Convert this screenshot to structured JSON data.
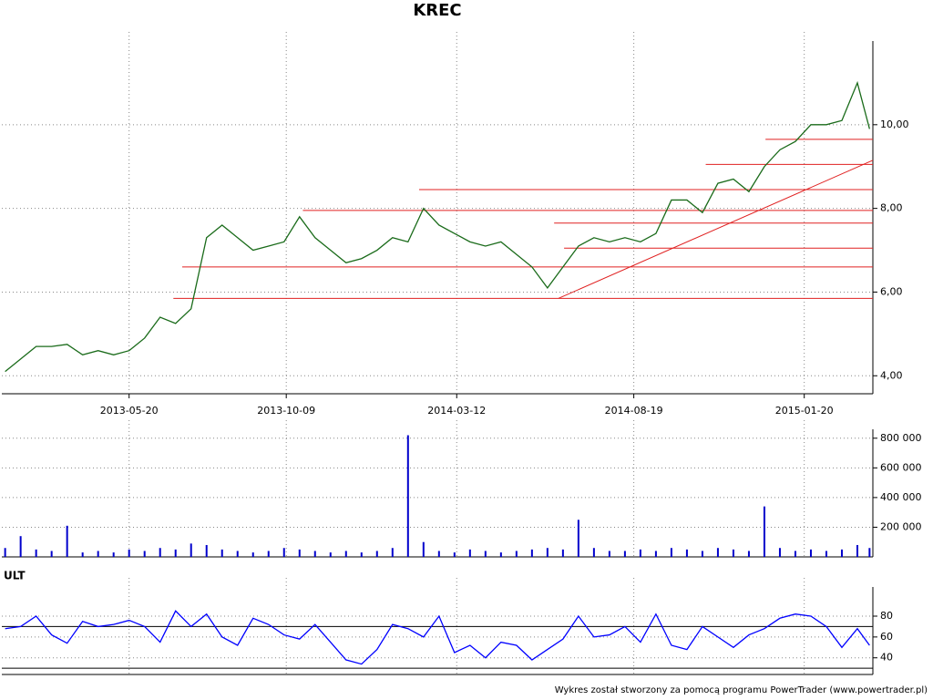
{
  "chart_data": [
    {
      "type": "line",
      "title": "KREC",
      "x": [
        "2013-01-28",
        "2013-02-11",
        "2013-02-25",
        "2013-03-11",
        "2013-03-25",
        "2013-04-08",
        "2013-04-22",
        "2013-05-06",
        "2013-05-20",
        "2013-06-03",
        "2013-06-17",
        "2013-07-01",
        "2013-07-15",
        "2013-07-29",
        "2013-08-12",
        "2013-08-26",
        "2013-09-09",
        "2013-09-23",
        "2013-10-07",
        "2013-10-21",
        "2013-11-04",
        "2013-11-18",
        "2013-12-02",
        "2013-12-16",
        "2013-12-30",
        "2014-01-13",
        "2014-01-27",
        "2014-02-10",
        "2014-02-24",
        "2014-03-10",
        "2014-03-24",
        "2014-04-07",
        "2014-04-21",
        "2014-05-05",
        "2014-05-19",
        "2014-06-02",
        "2014-06-16",
        "2014-06-30",
        "2014-07-14",
        "2014-07-28",
        "2014-08-11",
        "2014-08-25",
        "2014-09-08",
        "2014-09-22",
        "2014-10-06",
        "2014-10-20",
        "2014-11-03",
        "2014-11-17",
        "2014-12-01",
        "2014-12-15",
        "2014-12-29",
        "2015-01-12",
        "2015-01-26",
        "2015-02-09",
        "2015-02-23",
        "2015-03-09",
        "2015-03-20"
      ],
      "series": [
        {
          "color": "#1a6b1a",
          "values": [
            4.1,
            4.4,
            4.7,
            4.7,
            4.75,
            4.5,
            4.6,
            4.5,
            4.6,
            4.9,
            5.4,
            5.25,
            5.6,
            7.3,
            7.6,
            7.3,
            7.0,
            7.1,
            7.2,
            7.8,
            7.3,
            7.0,
            6.7,
            6.8,
            7.0,
            7.3,
            7.2,
            8.0,
            7.6,
            7.4,
            7.2,
            7.1,
            7.2,
            6.9,
            6.6,
            6.1,
            6.6,
            7.1,
            7.3,
            7.2,
            7.3,
            7.2,
            7.4,
            8.2,
            8.2,
            7.9,
            8.6,
            8.7,
            8.4,
            9.0,
            9.4,
            9.6,
            10.0,
            10.0,
            10.1,
            11.0,
            9.9
          ]
        }
      ],
      "levels": [
        {
          "value": 5.85,
          "start": "2013-06-29"
        },
        {
          "value": 6.6,
          "start": "2013-07-07"
        },
        {
          "value": 7.95,
          "start": "2013-10-24"
        },
        {
          "value": 8.45,
          "start": "2014-02-06"
        },
        {
          "value": 7.65,
          "start": "2014-06-08"
        },
        {
          "value": 7.05,
          "start": "2014-06-17"
        },
        {
          "value": 9.05,
          "start": "2014-10-23"
        },
        {
          "value": 9.65,
          "start": "2014-12-16"
        }
      ],
      "level_color": "#e02020",
      "trendline": {
        "x": [
          "2014-06-12",
          "2015-03-23"
        ],
        "y": [
          5.85,
          9.15
        ]
      },
      "xlim": [
        "2013-01-25",
        "2015-03-23"
      ],
      "xticks": [
        "2013-05-20",
        "2013-10-09",
        "2014-03-12",
        "2014-08-19",
        "2015-01-20"
      ],
      "ylim": [
        3.57,
        12.0
      ],
      "yticks": [
        {
          "value": 4,
          "label": "4,00"
        },
        {
          "value": 6,
          "label": "6,00"
        },
        {
          "value": 8,
          "label": "8,00"
        },
        {
          "value": 10,
          "label": "10,00"
        }
      ],
      "grid": true
    },
    {
      "type": "bar",
      "x": [
        "2013-01-28",
        "2013-02-11",
        "2013-02-25",
        "2013-03-11",
        "2013-03-25",
        "2013-04-08",
        "2013-04-22",
        "2013-05-06",
        "2013-05-20",
        "2013-06-03",
        "2013-06-17",
        "2013-07-01",
        "2013-07-15",
        "2013-07-29",
        "2013-08-12",
        "2013-08-26",
        "2013-09-09",
        "2013-09-23",
        "2013-10-07",
        "2013-10-21",
        "2013-11-04",
        "2013-11-18",
        "2013-12-02",
        "2013-12-16",
        "2013-12-30",
        "2014-01-13",
        "2014-01-27",
        "2014-02-10",
        "2014-02-24",
        "2014-03-10",
        "2014-03-24",
        "2014-04-07",
        "2014-04-21",
        "2014-05-05",
        "2014-05-19",
        "2014-06-02",
        "2014-06-16",
        "2014-06-30",
        "2014-07-14",
        "2014-07-28",
        "2014-08-11",
        "2014-08-25",
        "2014-09-08",
        "2014-09-22",
        "2014-10-06",
        "2014-10-20",
        "2014-11-03",
        "2014-11-17",
        "2014-12-01",
        "2014-12-15",
        "2014-12-29",
        "2015-01-12",
        "2015-01-26",
        "2015-02-09",
        "2015-02-23",
        "2015-03-09",
        "2015-03-20"
      ],
      "values": [
        60000,
        140000,
        50000,
        40000,
        210000,
        30000,
        40000,
        30000,
        50000,
        40000,
        60000,
        50000,
        90000,
        80000,
        50000,
        40000,
        30000,
        40000,
        60000,
        50000,
        40000,
        30000,
        40000,
        30000,
        40000,
        60000,
        820000,
        100000,
        40000,
        30000,
        50000,
        40000,
        30000,
        40000,
        50000,
        60000,
        50000,
        250000,
        60000,
        40000,
        40000,
        50000,
        40000,
        60000,
        50000,
        40000,
        60000,
        50000,
        40000,
        340000,
        60000,
        40000,
        50000,
        40000,
        50000,
        80000,
        60000
      ],
      "color": "#0000cc",
      "ylim": [
        0,
        860000
      ],
      "yticks": [
        {
          "value": 200000,
          "label": "200 000"
        },
        {
          "value": 400000,
          "label": "400 000"
        },
        {
          "value": 600000,
          "label": "600 000"
        },
        {
          "value": 800000,
          "label": "800 000"
        }
      ],
      "grid": true
    },
    {
      "type": "line",
      "title": "ULT",
      "x": [
        "2013-01-28",
        "2013-02-11",
        "2013-02-25",
        "2013-03-11",
        "2013-03-25",
        "2013-04-08",
        "2013-04-22",
        "2013-05-06",
        "2013-05-20",
        "2013-06-03",
        "2013-06-17",
        "2013-07-01",
        "2013-07-15",
        "2013-07-29",
        "2013-08-12",
        "2013-08-26",
        "2013-09-09",
        "2013-09-23",
        "2013-10-07",
        "2013-10-21",
        "2013-11-04",
        "2013-11-18",
        "2013-12-02",
        "2013-12-16",
        "2013-12-30",
        "2014-01-13",
        "2014-01-27",
        "2014-02-10",
        "2014-02-24",
        "2014-03-10",
        "2014-03-24",
        "2014-04-07",
        "2014-04-21",
        "2014-05-05",
        "2014-05-19",
        "2014-06-02",
        "2014-06-16",
        "2014-06-30",
        "2014-07-14",
        "2014-07-28",
        "2014-08-11",
        "2014-08-25",
        "2014-09-08",
        "2014-09-22",
        "2014-10-06",
        "2014-10-20",
        "2014-11-03",
        "2014-11-17",
        "2014-12-01",
        "2014-12-15",
        "2014-12-29",
        "2015-01-12",
        "2015-01-26",
        "2015-02-09",
        "2015-02-23",
        "2015-03-09",
        "2015-03-20"
      ],
      "series": [
        {
          "color": "#0000ff",
          "values": [
            68,
            70,
            80,
            62,
            54,
            75,
            70,
            72,
            76,
            70,
            55,
            85,
            70,
            82,
            60,
            52,
            78,
            72,
            62,
            58,
            72,
            55,
            38,
            34,
            48,
            72,
            68,
            60,
            80,
            45,
            52,
            40,
            55,
            52,
            38,
            48,
            58,
            80,
            60,
            62,
            70,
            55,
            82,
            52,
            48,
            70,
            60,
            50,
            62,
            68,
            78,
            82,
            80,
            70,
            50,
            68,
            52
          ]
        }
      ],
      "levels": [
        {
          "value": 70
        },
        {
          "value": 30
        }
      ],
      "level_color": "#000000",
      "xlim": [
        "2013-01-25",
        "2015-03-23"
      ],
      "ylim": [
        24,
        108
      ],
      "yticks": [
        40,
        60,
        80
      ],
      "grid": true
    },
    {
      "footer": "Wykres został stworzony za pomocą programu PowerTrader (www.powertrader.pl)"
    }
  ]
}
